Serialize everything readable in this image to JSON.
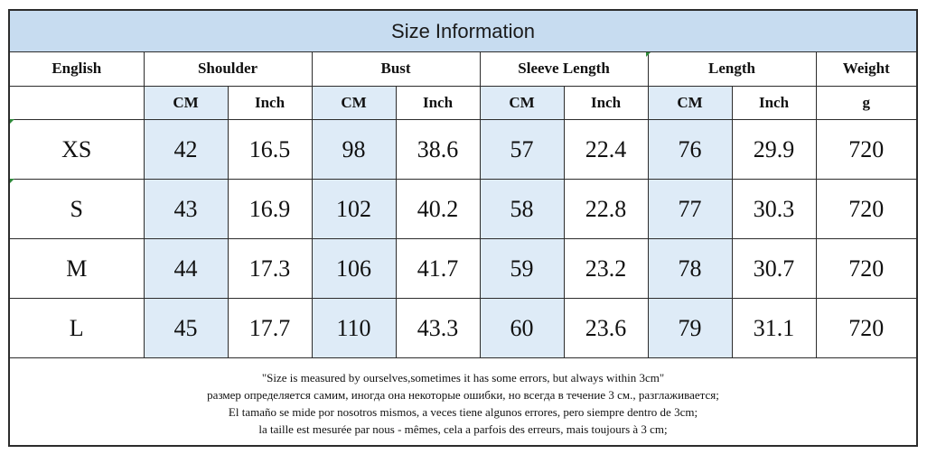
{
  "title": "Size Information",
  "header": {
    "english": "English",
    "shoulder": "Shoulder",
    "bust": "Bust",
    "sleeve_length": "Sleeve Length",
    "length": "Length",
    "weight": "Weight"
  },
  "units": {
    "cm": "CM",
    "inch": "Inch",
    "g": "g"
  },
  "rows": [
    {
      "size": "XS",
      "shoulder_cm": "42",
      "shoulder_inch": "16.5",
      "bust_cm": "98",
      "bust_inch": "38.6",
      "sleeve_cm": "57",
      "sleeve_inch": "22.4",
      "length_cm": "76",
      "length_inch": "29.9",
      "weight": "720"
    },
    {
      "size": "S",
      "shoulder_cm": "43",
      "shoulder_inch": "16.9",
      "bust_cm": "102",
      "bust_inch": "40.2",
      "sleeve_cm": "58",
      "sleeve_inch": "22.8",
      "length_cm": "77",
      "length_inch": "30.3",
      "weight": "720"
    },
    {
      "size": "M",
      "shoulder_cm": "44",
      "shoulder_inch": "17.3",
      "bust_cm": "106",
      "bust_inch": "41.7",
      "sleeve_cm": "59",
      "sleeve_inch": "23.2",
      "length_cm": "78",
      "length_inch": "30.7",
      "weight": "720"
    },
    {
      "size": "L",
      "shoulder_cm": "45",
      "shoulder_inch": "17.7",
      "bust_cm": "110",
      "bust_inch": "43.3",
      "sleeve_cm": "60",
      "sleeve_inch": "23.6",
      "length_cm": "79",
      "length_inch": "31.1",
      "weight": "720"
    }
  ],
  "notes": [
    "\"Size is measured by ourselves,sometimes it has some errors, but always within 3cm\"",
    "размер определяется самим, иногда она некоторые ошибки, но всегда в течение 3 см., разглаживается;",
    "El tamaño se mide por nosotros mismos, a veces tiene algunos errores, pero siempre dentro de 3cm;",
    "la taille est mesurée par nous - mêmes, cela a parfois des erreurs, mais toujours à 3 cm;"
  ],
  "colors": {
    "title_bg": "#c7dcf0",
    "cm_cell_bg": "#deebf7",
    "border": "#2c2c2c"
  }
}
